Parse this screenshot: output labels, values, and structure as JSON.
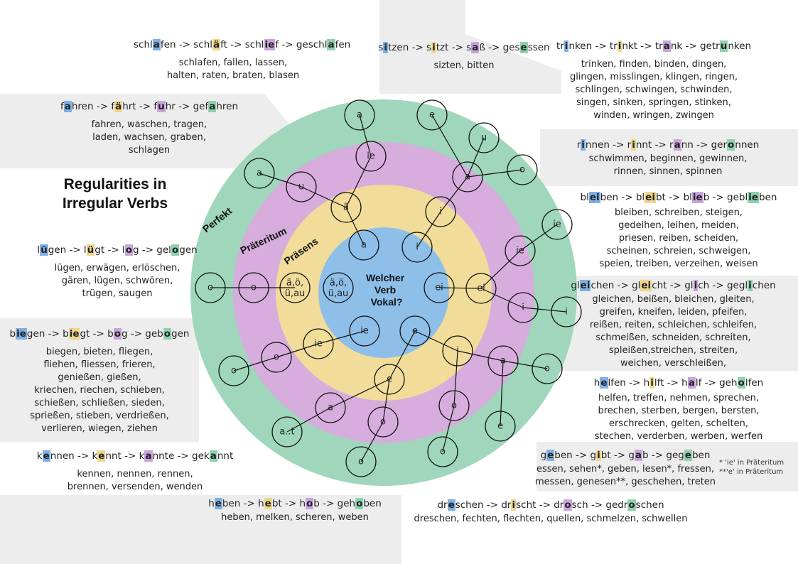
{
  "title": [
    "Regularities in",
    "Irregular Verbs"
  ],
  "rings": {
    "perfekt": "Perfekt",
    "praeteritum": "Präteritum",
    "praesens": "Präsens",
    "center": [
      "Welcher",
      "Verb",
      "Vokal?"
    ]
  },
  "bubbles": {
    "p_a_top": "a",
    "p_a_left": "a",
    "p_o_left": "o",
    "p_o_bl": "o",
    "p_at": "a..t",
    "p_o_bot": "o",
    "p_o_bot2": "o",
    "p_e_br": "e",
    "p_o_br": "o",
    "p_i_r": "i",
    "p_ie_r": "ie",
    "p_o_tr": "o",
    "p_e_top": "e",
    "t_ie_top": "ie",
    "t_u": "u",
    "t_o_left": "o",
    "t_o_bl": "o",
    "t_a_bot": "a",
    "t_o_bot": "o",
    "t_o_br": "o",
    "t_a_br": "a",
    "t_i_r": "i",
    "t_ie_r": "ie",
    "t_a_tr": "a",
    "t_u_tr": "u",
    "s_ae": "ä",
    "s_mix": "ä,ö,\nü,au",
    "s_ie": "ie",
    "s_e": "e",
    "s_i_br": "i",
    "s_ei": "ei",
    "s_i_tr": "i",
    "c_a": "a",
    "c_i": "i",
    "c_mix": "ä,ö,\nü,au",
    "c_ei": "ei",
    "c_ie": "ie",
    "c_e": "e"
  },
  "groups": {
    "schlafen": {
      "pattern": [
        [
          "schl",
          ""
        ],
        [
          "a",
          "b"
        ],
        [
          "fen -> schl",
          ""
        ],
        [
          "ä",
          "y"
        ],
        [
          "ft -> schl",
          ""
        ],
        [
          "ie",
          "p"
        ],
        [
          "f -> geschl",
          ""
        ],
        [
          "a",
          "g"
        ],
        [
          "fen",
          ""
        ]
      ],
      "lines": [
        "schlafen, fallen, lassen,",
        "halten, raten, braten, blasen"
      ]
    },
    "sitzen": {
      "pattern": [
        [
          "s",
          ""
        ],
        [
          "i",
          "b"
        ],
        [
          "tzen -> s",
          ""
        ],
        [
          "i",
          "y"
        ],
        [
          "tzt -> s",
          ""
        ],
        [
          "a",
          "p"
        ],
        [
          "ß -> ges",
          ""
        ],
        [
          "e",
          "g"
        ],
        [
          "ssen",
          ""
        ]
      ],
      "lines": [
        "sizten, bitten"
      ]
    },
    "trinken": {
      "pattern": [
        [
          "tr",
          ""
        ],
        [
          "i",
          "b"
        ],
        [
          "nken -> tr",
          ""
        ],
        [
          "i",
          "y"
        ],
        [
          "nkt -> tr",
          ""
        ],
        [
          "a",
          "p"
        ],
        [
          "nk -> getr",
          ""
        ],
        [
          "u",
          "g"
        ],
        [
          "nken",
          ""
        ]
      ],
      "lines": [
        "trinken, finden, binden, dingen,",
        "glingen, misslingen, klingen, ringen,",
        "schlingen, schwingen, schwinden,",
        "singen, sinken, springen, stinken,",
        "winden, wringen, zwingen"
      ]
    },
    "fahren": {
      "pattern": [
        [
          "f",
          ""
        ],
        [
          "a",
          "b"
        ],
        [
          "hren -> f",
          ""
        ],
        [
          "ä",
          "y"
        ],
        [
          "hrt -> f",
          ""
        ],
        [
          "u",
          "p"
        ],
        [
          "hr -> gef",
          ""
        ],
        [
          "a",
          "g"
        ],
        [
          "hren",
          ""
        ]
      ],
      "lines": [
        "fahren, waschen, tragen,",
        "laden, wachsen, graben,",
        "schlagen"
      ]
    },
    "rinnen": {
      "pattern": [
        [
          "r",
          ""
        ],
        [
          "i",
          "b"
        ],
        [
          "nnen -> r",
          ""
        ],
        [
          "i",
          "y"
        ],
        [
          "nnt -> r",
          ""
        ],
        [
          "a",
          "p"
        ],
        [
          "nn -> ger",
          ""
        ],
        [
          "o",
          "g"
        ],
        [
          "nnen",
          ""
        ]
      ],
      "lines": [
        "schwimmen, beginnen, gewinnen,",
        "rinnen, sinnen, spinnen"
      ]
    },
    "bleiben": {
      "pattern": [
        [
          "bl",
          ""
        ],
        [
          "ei",
          "b"
        ],
        [
          "ben -> bl",
          ""
        ],
        [
          "ei",
          "y"
        ],
        [
          "bt -> bl",
          ""
        ],
        [
          "ie",
          "p"
        ],
        [
          "b -> gebl",
          ""
        ],
        [
          "ie",
          "g"
        ],
        [
          "ben",
          ""
        ]
      ],
      "lines": [
        "bleiben, schreiben, steigen,",
        "gedeihen, leihen, meiden,",
        "priesen, reiben, scheiden,",
        "scheinen, schreien, schweigen,",
        "speien, treiben, verzeihen, weisen"
      ]
    },
    "luegen": {
      "pattern": [
        [
          "l",
          ""
        ],
        [
          "ü",
          "b"
        ],
        [
          "gen -> l",
          ""
        ],
        [
          "ü",
          "y"
        ],
        [
          "gt -> l",
          ""
        ],
        [
          "o",
          "p"
        ],
        [
          "g -> gel",
          ""
        ],
        [
          "o",
          "g"
        ],
        [
          "gen",
          ""
        ]
      ],
      "lines": [
        "lügen, erwägen, erlöschen,",
        "gären, lügen, schwören,",
        "trügen, saugen"
      ]
    },
    "gleichen": {
      "pattern": [
        [
          "gl",
          ""
        ],
        [
          "ei",
          "b"
        ],
        [
          "chen -> gl",
          ""
        ],
        [
          "ei",
          "y"
        ],
        [
          "cht -> gl",
          ""
        ],
        [
          "i",
          "p"
        ],
        [
          "ch -> gegl",
          ""
        ],
        [
          "i",
          "g"
        ],
        [
          "chen",
          ""
        ]
      ],
      "lines": [
        "gleichen, beißen, bleichen, gleiten,",
        "greifen, kneifen, leiden, pfeifen,",
        "reißen, reiten, schleichen, schleifen,",
        "schmeißen, schneiden, schreiten,",
        "spleißen,streichen, streiten,",
        "weichen, verschleißen,"
      ]
    },
    "biegen": {
      "pattern": [
        [
          "b",
          ""
        ],
        [
          "ie",
          "b"
        ],
        [
          "gen -> b",
          ""
        ],
        [
          "ie",
          "y"
        ],
        [
          "gt -> b",
          ""
        ],
        [
          "o",
          "p"
        ],
        [
          "g -> geb",
          ""
        ],
        [
          "o",
          "g"
        ],
        [
          "gen",
          ""
        ]
      ],
      "lines": [
        "biegen, bieten, fliegen,",
        "fliehen, fliessen, frieren,",
        "genießen, gießen,",
        "kriechen, riechen, schieben,",
        "schießen, schließen, sieden,",
        "sprießen, stieben, verdrießen,",
        "verlieren, wiegen, ziehen"
      ]
    },
    "helfen": {
      "pattern": [
        [
          "h",
          ""
        ],
        [
          "e",
          "b"
        ],
        [
          "lfen -> h",
          ""
        ],
        [
          "i",
          "y"
        ],
        [
          "lft -> h",
          ""
        ],
        [
          "a",
          "p"
        ],
        [
          "lf -> geh",
          ""
        ],
        [
          "o",
          "g"
        ],
        [
          "lfen",
          ""
        ]
      ],
      "lines": [
        "helfen, treffen, nehmen, sprechen,",
        "brechen, sterben, bergen, bersten,",
        "erschrecken, gelten, schelten,",
        "stechen, verderben, werben, werfen"
      ]
    },
    "kennen": {
      "pattern": [
        [
          "k",
          ""
        ],
        [
          "e",
          "b"
        ],
        [
          "nnen -> k",
          ""
        ],
        [
          "e",
          "y"
        ],
        [
          "nnt -> k",
          ""
        ],
        [
          "a",
          "p"
        ],
        [
          "nnte -> gek",
          ""
        ],
        [
          "a",
          "g"
        ],
        [
          "nnt",
          ""
        ]
      ],
      "lines": [
        "kennen, nennen, rennen,",
        "brennen, versenden, wenden"
      ]
    },
    "geben": {
      "pattern": [
        [
          "g",
          ""
        ],
        [
          "e",
          "b"
        ],
        [
          "ben -> g",
          ""
        ],
        [
          "i",
          "y"
        ],
        [
          "bt -> g",
          ""
        ],
        [
          "a",
          "p"
        ],
        [
          "b -> geg",
          ""
        ],
        [
          "e",
          "g"
        ],
        [
          "ben",
          ""
        ]
      ],
      "lines": [
        "essen, sehen*, geben, lesen*, fressen,",
        "messen, genesen**, geschehen, treten"
      ]
    },
    "heben": {
      "pattern": [
        [
          "h",
          ""
        ],
        [
          "e",
          "b"
        ],
        [
          "ben -> h",
          ""
        ],
        [
          "e",
          "y"
        ],
        [
          "bt -> h",
          ""
        ],
        [
          "o",
          "p"
        ],
        [
          "b -> geh",
          ""
        ],
        [
          "o",
          "g"
        ],
        [
          "ben",
          ""
        ]
      ],
      "lines": [
        "heben, melken, scheren, weben"
      ]
    },
    "dreschen": {
      "pattern": [
        [
          "dr",
          ""
        ],
        [
          "e",
          "b"
        ],
        [
          "schen -> dr",
          ""
        ],
        [
          "i",
          "y"
        ],
        [
          "scht -> dr",
          ""
        ],
        [
          "o",
          "p"
        ],
        [
          "sch -> gedr",
          ""
        ],
        [
          "o",
          "g"
        ],
        [
          "schen",
          ""
        ]
      ],
      "lines": [
        "dreschen, fechten, flechten, quellen, schmelzen, schwellen"
      ]
    }
  },
  "notes": [
    "* 'ie' in Präteritum",
    "**'e' in Präteritum"
  ],
  "colors": {
    "perfekt": "#9fd6bc",
    "praeteritum": "#d6addc",
    "praesens": "#f1dc9a",
    "center": "#8ebfe9",
    "panel": "#ededed"
  }
}
